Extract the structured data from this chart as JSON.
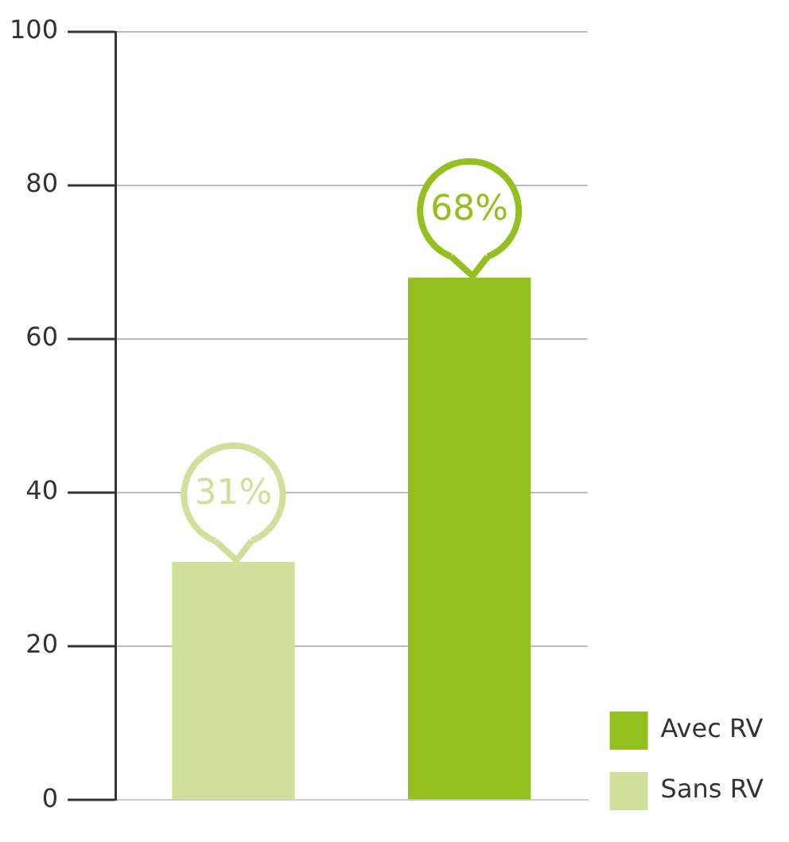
{
  "chart_data": {
    "type": "bar",
    "categories": [
      null,
      null
    ],
    "series": [
      {
        "name": "Sans RV",
        "color": "#d0e09a",
        "values": [
          31,
          null
        ],
        "value_labels": [
          "31%",
          null
        ]
      },
      {
        "name": "Avec RV",
        "color": "#93c01f",
        "values": [
          null,
          68
        ],
        "value_labels": [
          null,
          "68%"
        ]
      }
    ],
    "ylim": [
      0,
      100
    ],
    "yticks": [
      0,
      20,
      40,
      60,
      80,
      100
    ],
    "grid": "y",
    "legend": "bottom right"
  }
}
